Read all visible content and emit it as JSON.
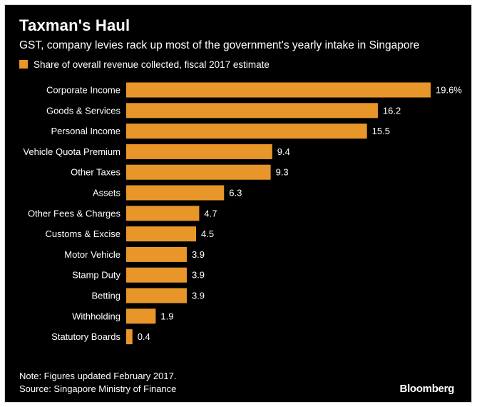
{
  "colors": {
    "background": "#000000",
    "bar": "#e8962a",
    "text": "#ffffff"
  },
  "header": {
    "title": "Taxman's Haul",
    "subtitle": "GST, company levies rack up most of the government's yearly intake in Singapore"
  },
  "footer": {
    "note": "Note: Figures updated February 2017.",
    "source": "Source: Singapore Ministry of Finance",
    "brand": "Bloomberg"
  },
  "chart_data": {
    "type": "bar",
    "orientation": "horizontal",
    "title": "Taxman's Haul",
    "subtitle": "GST, company levies rack up most of the government's yearly intake in Singapore",
    "legend": {
      "entries": [
        "Share of overall revenue collected, fiscal 2017 estimate"
      ],
      "position": "top-left"
    },
    "categories": [
      "Corporate Income",
      "Goods & Services",
      "Personal Income",
      "Vehicle Quota Premium",
      "Other Taxes",
      "Assets",
      "Other Fees & Charges",
      "Customs & Excise",
      "Motor Vehicle",
      "Stamp Duty",
      "Betting",
      "Withholding",
      "Statutory Boards"
    ],
    "values": [
      19.6,
      16.2,
      15.5,
      9.4,
      9.3,
      6.3,
      4.7,
      4.5,
      3.9,
      3.9,
      3.9,
      1.9,
      0.4
    ],
    "value_labels": [
      "19.6%",
      "16.2",
      "15.5",
      "9.4",
      "9.3",
      "6.3",
      "4.7",
      "4.5",
      "3.9",
      "3.9",
      "3.9",
      "1.9",
      "0.4"
    ],
    "unit": "%",
    "xlim": [
      0,
      19.6
    ],
    "xlabel": "",
    "ylabel": "",
    "grid": false
  }
}
